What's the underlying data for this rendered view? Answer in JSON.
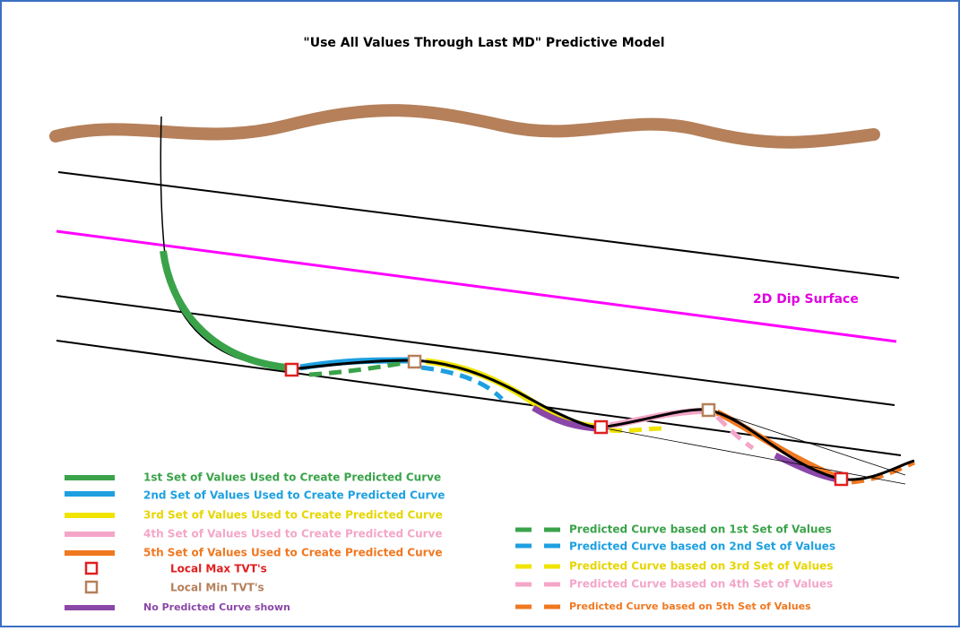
{
  "title": "\"Use All Values Through Last MD\" Predictive Model",
  "dip_label": "2D Dip Surface",
  "legend_left": [
    "1st Set of Values Used to Create Predicted Curve",
    "2nd Set of Values Used to Create Predicted Curve",
    "3rd Set of Values Used to Create Predicted Curve",
    "4th Set of Values Used to Create Predicted Curve",
    "5th Set of Values Used to Create Predicted Curve",
    "Local Max TVT's",
    "Local Min TVT's",
    "No Predicted Curve shown"
  ],
  "legend_right": [
    "Predicted Curve based on 1st Set of Values",
    "Predicted Curve based on 2nd Set of Values",
    "Predicted Curve based on 3rd Set of Values",
    "Predicted Curve based on 4th Set of Values",
    "Predicted Curve based on 5th Set of Values"
  ]
}
